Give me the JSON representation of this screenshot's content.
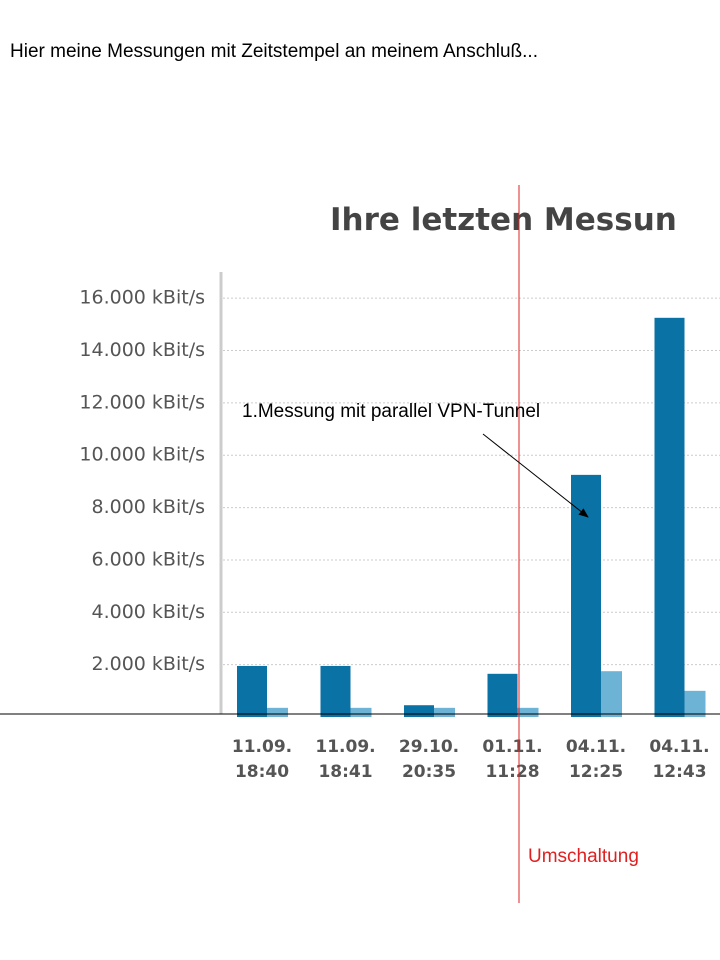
{
  "heading": "Hier meine Messungen mit Zeitstempel an meinem  Anschluß...",
  "chart_data": {
    "type": "bar",
    "title": "Ihre letzten Messun",
    "categories": [
      [
        "11.09.",
        "18:40"
      ],
      [
        "11.09.",
        "18:41"
      ],
      [
        "29.10.",
        "20:35"
      ],
      [
        "01.11.",
        "11:28"
      ],
      [
        "04.11.",
        "12:25"
      ],
      [
        "04.11.",
        "12:43"
      ]
    ],
    "series": [
      {
        "color": "#0a72a4",
        "values": [
          1950,
          1950,
          450,
          1650,
          9250,
          15250
        ]
      },
      {
        "color": "#6db3d6",
        "values": [
          350,
          350,
          350,
          350,
          1750,
          1000
        ]
      }
    ],
    "ylim": [
      0,
      17000
    ],
    "yticks": [
      {
        "value": 2000,
        "label": "2.000 kBit/s"
      },
      {
        "value": 4000,
        "label": "4.000 kBit/s"
      },
      {
        "value": 6000,
        "label": "6.000 kBit/s"
      },
      {
        "value": 8000,
        "label": "8.000 kBit/s"
      },
      {
        "value": 10000,
        "label": "10.000 kBit/s"
      },
      {
        "value": 12000,
        "label": "12.000 kBit/s"
      },
      {
        "value": 14000,
        "label": "14.000 kBit/s"
      },
      {
        "value": 16000,
        "label": "16.000 kBit/s"
      }
    ],
    "grid": true,
    "annotations": [
      "1.Messung mit parallel VPN-Tunnel",
      "Umschaltung"
    ]
  }
}
